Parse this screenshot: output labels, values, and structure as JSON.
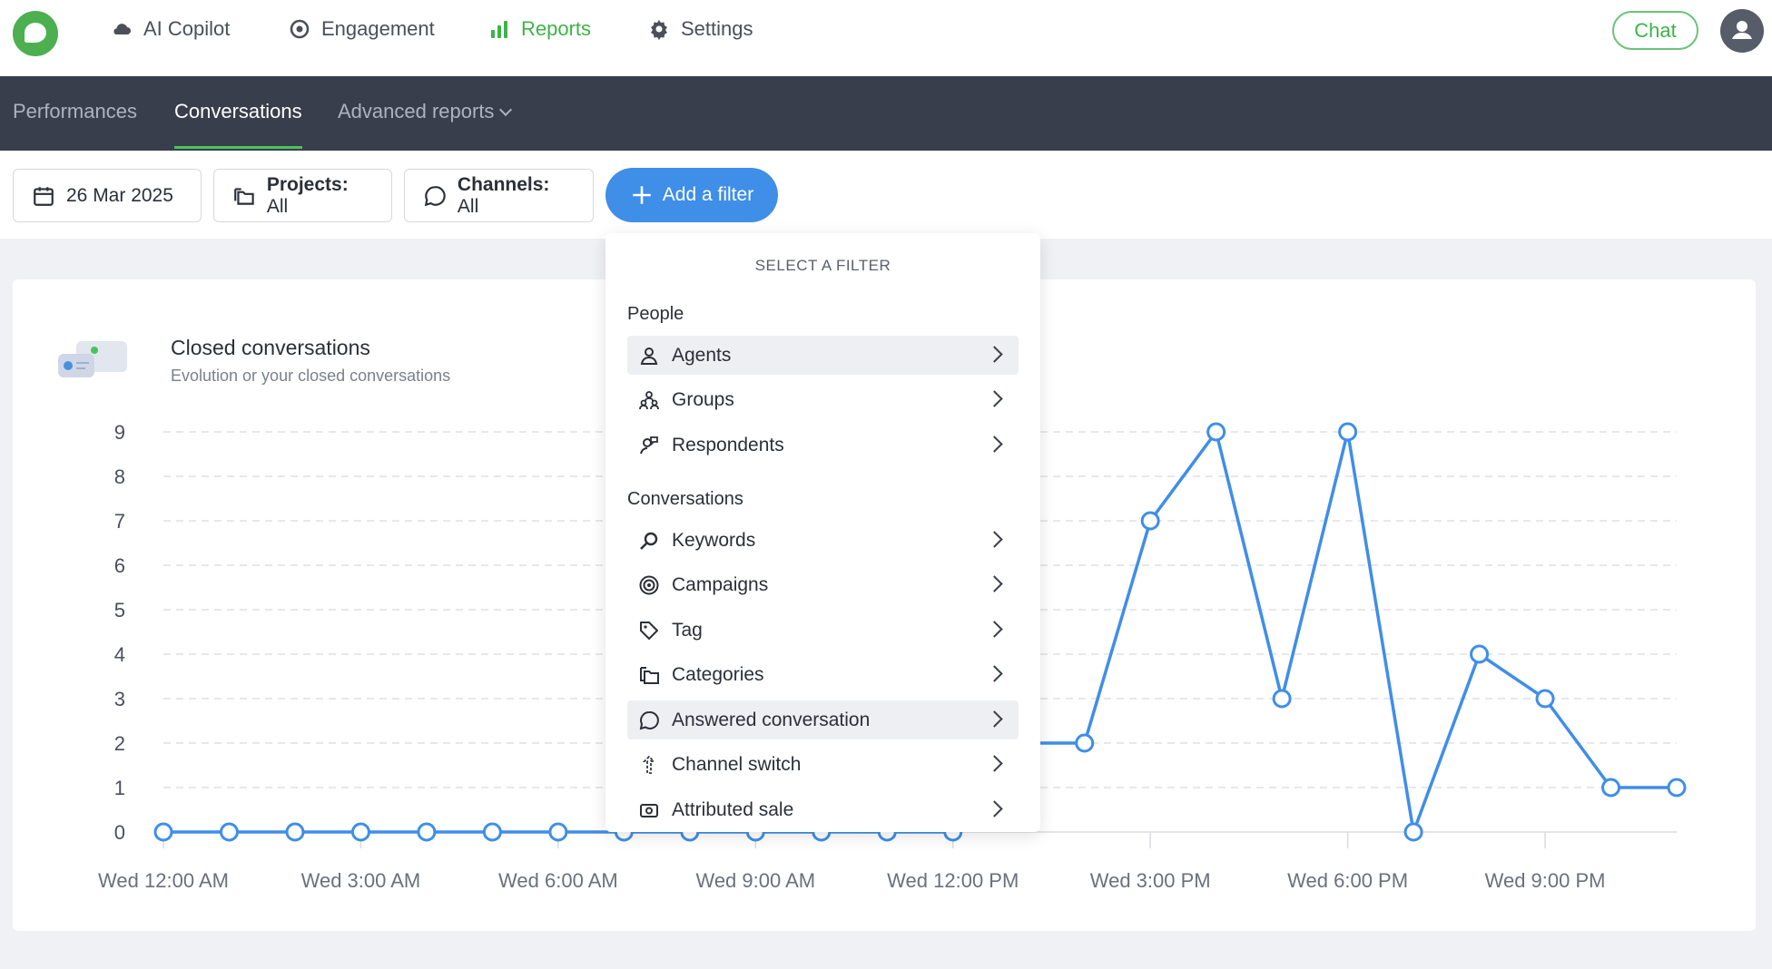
{
  "nav": {
    "items": [
      {
        "label": "AI Copilot",
        "icon": "cloud-icon"
      },
      {
        "label": "Engagement",
        "icon": "target-icon"
      },
      {
        "label": "Reports",
        "icon": "bar-chart-icon",
        "active": true
      },
      {
        "label": "Settings",
        "icon": "gear-icon"
      }
    ],
    "chat_label": "Chat",
    "accent": "#3fb249"
  },
  "subnav": {
    "tabs": [
      {
        "label": "Performances"
      },
      {
        "label": "Conversations",
        "active": true
      },
      {
        "label": "Advanced reports"
      }
    ]
  },
  "filters": {
    "date": "26 Mar 2025",
    "projects_label": "Projects:",
    "projects_value": "All",
    "channels_label": "Channels:",
    "channels_value": "All",
    "add_filter": "Add a filter"
  },
  "dropdown": {
    "heading": "SELECT A FILTER",
    "people_heading": "People",
    "people": [
      "Agents",
      "Groups",
      "Respondents"
    ],
    "conversations_heading": "Conversations",
    "conversations": [
      "Keywords",
      "Campaigns",
      "Tag",
      "Categories",
      "Answered conversation",
      "Channel switch",
      "Attributed sale"
    ]
  },
  "card": {
    "title": "Closed conversations",
    "subtitle": "Evolution or your closed conversations"
  },
  "chart_data": {
    "type": "line",
    "title": "Closed conversations",
    "x": [
      "Wed 12:00 AM",
      "Wed 1:00 AM",
      "Wed 2:00 AM",
      "Wed 3:00 AM",
      "Wed 4:00 AM",
      "Wed 5:00 AM",
      "Wed 6:00 AM",
      "Wed 7:00 AM",
      "Wed 8:00 AM",
      "Wed 9:00 AM",
      "Wed 10:00 AM",
      "Wed 11:00 AM",
      "Wed 12:00 PM",
      "Wed 1:00 PM",
      "Wed 2:00 PM",
      "Wed 3:00 PM",
      "Wed 4:00 PM",
      "Wed 5:00 PM",
      "Wed 6:00 PM",
      "Wed 7:00 PM",
      "Wed 8:00 PM",
      "Wed 9:00 PM",
      "Wed 10:00 PM",
      "Wed 11:00 PM"
    ],
    "x_tick_labels": [
      "Wed 12:00 AM",
      "Wed 3:00 AM",
      "Wed 6:00 AM",
      "Wed 9:00 AM",
      "Wed 12:00 PM",
      "Wed 3:00 PM",
      "Wed 6:00 PM",
      "Wed 9:00 PM"
    ],
    "series": [
      {
        "values": [
          0,
          0,
          0,
          0,
          0,
          0,
          0,
          0,
          0,
          0,
          0,
          0,
          0,
          2,
          2,
          7,
          9,
          3,
          9,
          0,
          4,
          3,
          1,
          1
        ]
      }
    ],
    "ylim": [
      0,
      9
    ],
    "yticks": [
      "0",
      "1",
      "2",
      "3",
      "4",
      "5",
      "6",
      "7",
      "8",
      "9"
    ],
    "grid": true,
    "color": "#3f8ee8"
  }
}
